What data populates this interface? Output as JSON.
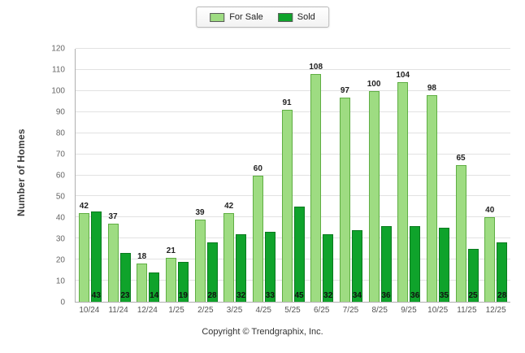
{
  "chart_data": {
    "type": "bar",
    "title": "",
    "ylabel": "Number of Homes",
    "xlabel": "",
    "ylim": [
      0,
      120
    ],
    "ytick_step": 10,
    "grid": true,
    "legend_position": "top-center",
    "categories": [
      "10/24",
      "11/24",
      "12/24",
      "1/25",
      "2/25",
      "3/25",
      "4/25",
      "5/25",
      "6/25",
      "7/25",
      "8/25",
      "9/25",
      "10/25",
      "11/25",
      "12/25"
    ],
    "series": [
      {
        "name": "For Sale",
        "color": "#9edc82",
        "border_color": "#5fae43",
        "values": [
          42,
          37,
          18,
          21,
          39,
          42,
          60,
          91,
          108,
          97,
          100,
          104,
          98,
          65,
          40
        ]
      },
      {
        "name": "Sold",
        "color": "#0fa32b",
        "border_color": "#0a7a1f",
        "values": [
          43,
          23,
          14,
          19,
          28,
          32,
          33,
          45,
          32,
          34,
          36,
          36,
          35,
          25,
          28
        ]
      }
    ]
  },
  "footer": {
    "text": "Copyright © Trendgraphix, Inc."
  }
}
